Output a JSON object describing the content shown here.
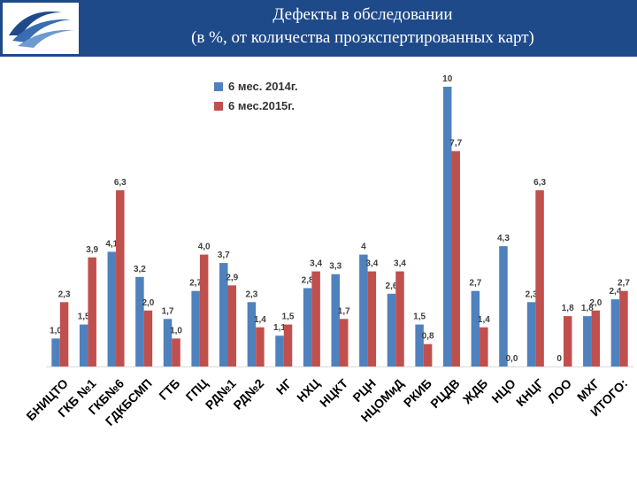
{
  "header": {
    "title_line1": "Дефекты в обследовании",
    "title_line2": "(в %, от количества проэкспертированных карт)",
    "bg_color": "#1f4a8a"
  },
  "colors": {
    "s2014": "#4f81bd",
    "s2015": "#c0504d"
  },
  "chart_data": {
    "type": "bar",
    "ylim": [
      0,
      10
    ],
    "grid": false,
    "legend": "top-left",
    "categories": [
      "БНИЦТО",
      "ГКБ №1",
      "ГКБ№6",
      "ГДКБСМП",
      "ГТБ",
      "ГПЦ",
      "РД№1",
      "РД№2",
      "НГ",
      "НХЦ",
      "НЦКТ",
      "РЦН",
      "НЦОМиД",
      "РКИБ",
      "РЦДВ",
      "ЖДБ",
      "НЦО",
      "КНЦГ",
      "ЛОО",
      "МХГ",
      "ИТОГО:"
    ],
    "series": [
      {
        "name": "6 мес. 2014г.",
        "values": [
          1.0,
          1.5,
          4.1,
          3.2,
          1.7,
          2.7,
          3.7,
          2.3,
          1.1,
          2.8,
          3.3,
          4,
          2.6,
          1.5,
          10,
          2.7,
          4.3,
          2.3,
          0,
          1.8,
          2.4
        ],
        "labels": [
          "1,0",
          "1,5",
          "4,1",
          "3,2",
          "1,7",
          "2,7",
          "3,7",
          "2,3",
          "1,1",
          "2,8",
          "3,3",
          "4",
          "2,6",
          "1,5",
          "10",
          "2,7",
          "4,3",
          "2,3",
          "0",
          "1,8",
          "2,4"
        ]
      },
      {
        "name": "6 мес.2015г.",
        "values": [
          2.3,
          3.9,
          6.3,
          2.0,
          1.0,
          4.0,
          2.9,
          1.4,
          1.5,
          3.4,
          1.7,
          3.4,
          3.4,
          0.8,
          7.7,
          1.4,
          0.0,
          6.3,
          1.8,
          2.0,
          2.7
        ],
        "labels": [
          "2,3",
          "3,9",
          "6,3",
          "2,0",
          "1,0",
          "4,0",
          "2,9",
          "1,4",
          "1,5",
          "3,4",
          "1,7",
          "3,4",
          "3,4",
          "0,8",
          "7,7",
          "1,4",
          "0,0",
          "6,3",
          "1,8",
          "2,0",
          "2,7"
        ]
      }
    ]
  }
}
